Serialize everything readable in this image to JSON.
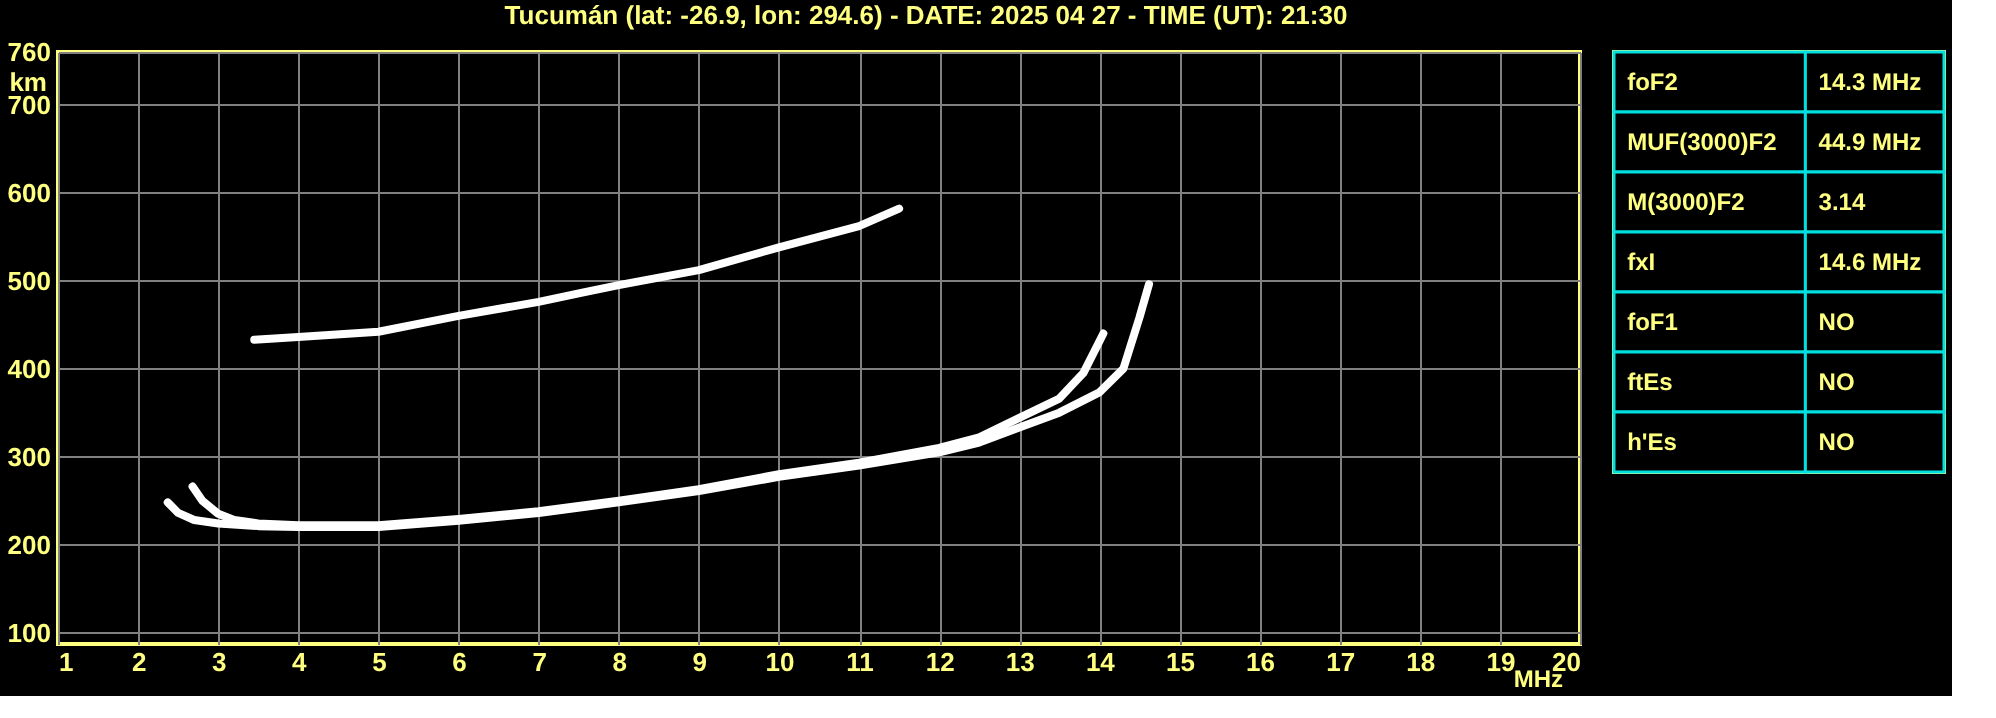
{
  "chart_data": {
    "type": "line",
    "title": "Tucumán (lat: -26.9, lon: 294.6) - DATE: 2025 04 27 - TIME (UT): 21:30",
    "xlabel": "MHz",
    "ylabel": "km",
    "xlim": [
      1,
      20
    ],
    "ylim": [
      87,
      760
    ],
    "xticks": [
      1,
      2,
      3,
      4,
      5,
      6,
      7,
      8,
      9,
      10,
      11,
      12,
      13,
      14,
      15,
      16,
      17,
      18,
      19,
      20
    ],
    "yticks": [
      100,
      200,
      300,
      400,
      500,
      600,
      700,
      760
    ],
    "grid": true,
    "series": [
      {
        "color": "#ffffff",
        "x": [
          2.68,
          2.8,
          3,
          3.2,
          3.5,
          4,
          5,
          6,
          7,
          8,
          9,
          10,
          11,
          12,
          12.5,
          13,
          13.5,
          13.8,
          14.05
        ],
        "values": [
          266,
          250,
          235,
          228,
          224,
          222,
          222,
          229,
          238,
          250,
          263,
          280,
          293,
          310,
          322,
          344,
          366,
          395,
          440
        ]
      },
      {
        "color": "#ffffff",
        "x": [
          2.37,
          2.5,
          2.7,
          3,
          3.5,
          4,
          5,
          6,
          7,
          8,
          9,
          10,
          11,
          12,
          12.5,
          13,
          13.5,
          14,
          14.3,
          14.5,
          14.62
        ],
        "values": [
          248,
          236,
          228,
          224,
          221,
          220,
          220,
          227,
          236,
          248,
          261,
          277,
          290,
          305,
          316,
          333,
          350,
          373,
          400,
          458,
          496
        ]
      },
      {
        "color": "#ffffff",
        "x": [
          3.45,
          4,
          5,
          6,
          7,
          7.575,
          8,
          9,
          10,
          11,
          11.5
        ],
        "values": [
          433,
          436,
          442,
          460,
          476,
          487,
          495,
          512,
          538,
          562,
          582
        ]
      }
    ],
    "annotations": [
      "foF2",
      "14.3 MHz",
      "MUF(3000)F2",
      "44.9 MHz",
      "M(3000)F2",
      "3.14",
      "fxI",
      "14.6 MHz",
      "foF1",
      "NO",
      "ftEs",
      "NO",
      "h'Es",
      "NO"
    ]
  }
}
